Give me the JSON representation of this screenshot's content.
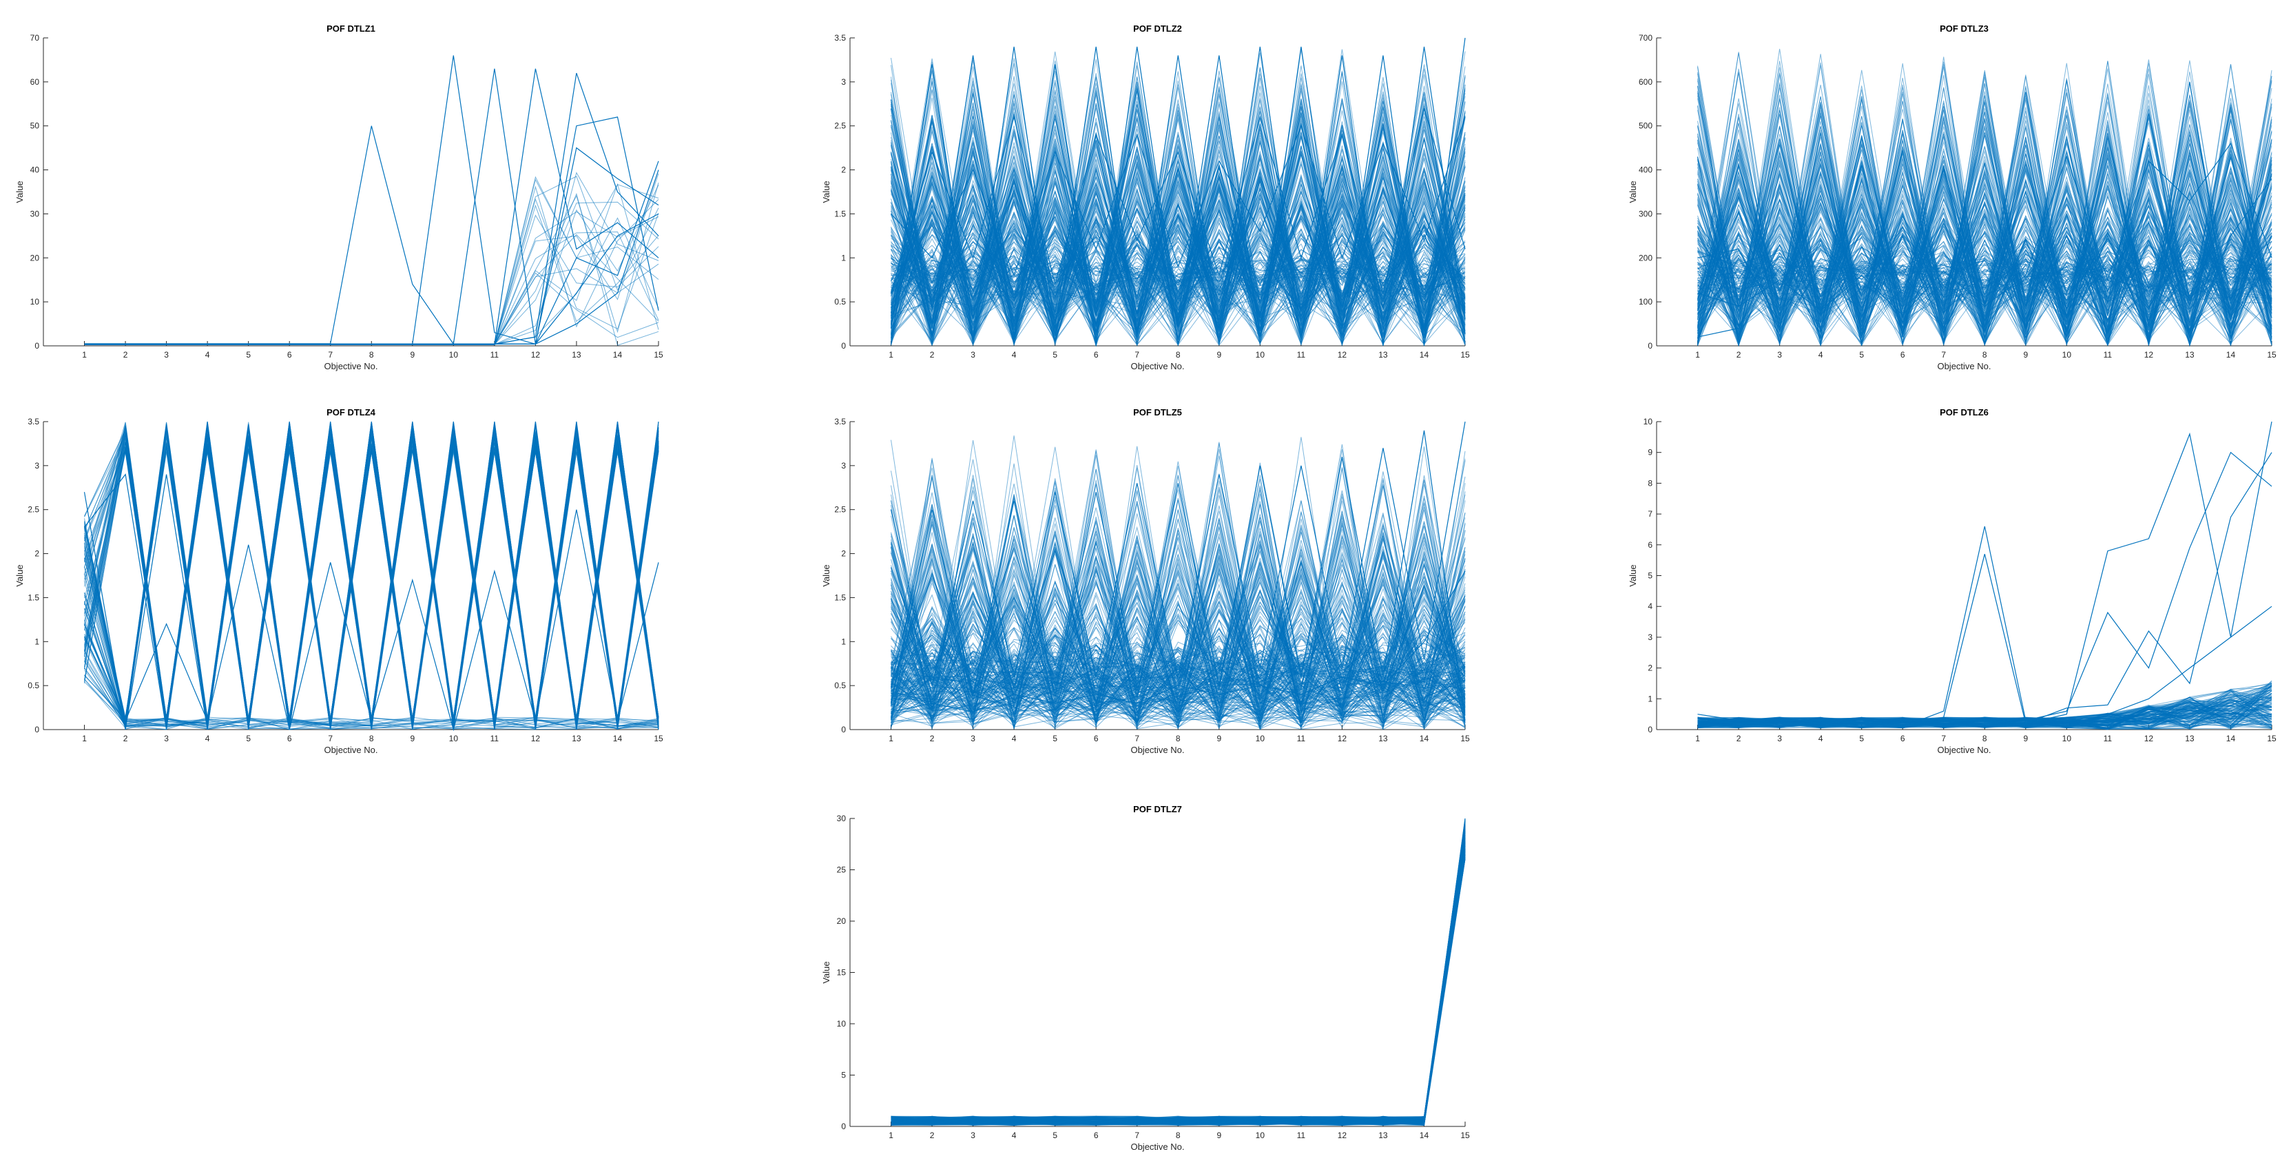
{
  "line_color": "#0072BD",
  "chart_data": [
    {
      "type": "line",
      "title": "POF DTLZ1",
      "xlabel": "Objective No.",
      "ylabel": "Value",
      "x": [
        1,
        2,
        3,
        4,
        5,
        6,
        7,
        8,
        9,
        10,
        11,
        12,
        13,
        14,
        15
      ],
      "xlim": [
        0,
        15
      ],
      "ylim": [
        0,
        70
      ],
      "yticks": [
        0,
        10,
        20,
        30,
        40,
        50,
        60,
        70
      ],
      "pattern": "sparse_late",
      "grid": false,
      "legend": "none",
      "series": [
        {
          "values": [
            0.5,
            0.5,
            0.5,
            0.5,
            0.5,
            0.5,
            0.5,
            50,
            14,
            0.4,
            0.4,
            0.4,
            5,
            12,
            40
          ]
        },
        {
          "values": [
            0.4,
            0.4,
            0.4,
            0.4,
            0.4,
            0.4,
            0.4,
            0.4,
            0.4,
            66,
            3,
            0.4,
            12,
            25,
            30
          ]
        },
        {
          "values": [
            0.4,
            0.4,
            0.4,
            0.4,
            0.4,
            0.4,
            0.4,
            0.4,
            0.4,
            0.4,
            63,
            0.4,
            20,
            16,
            42
          ]
        },
        {
          "values": [
            0.4,
            0.4,
            0.4,
            0.4,
            0.4,
            0.4,
            0.4,
            0.4,
            0.4,
            0.4,
            0.4,
            63,
            22,
            28,
            20
          ]
        },
        {
          "values": [
            0.4,
            0.4,
            0.4,
            0.4,
            0.4,
            0.4,
            0.4,
            0.4,
            0.4,
            0.4,
            0.4,
            2,
            62,
            35,
            25
          ]
        },
        {
          "values": [
            0.4,
            0.4,
            0.4,
            0.4,
            0.4,
            0.4,
            0.4,
            0.4,
            0.4,
            0.4,
            0.4,
            0.4,
            50,
            52,
            8
          ]
        },
        {
          "values": [
            0.4,
            0.4,
            0.4,
            0.4,
            0.4,
            0.4,
            0.4,
            0.4,
            0.4,
            0.4,
            0.4,
            0.4,
            45,
            38,
            32
          ]
        }
      ]
    },
    {
      "type": "line",
      "title": "POF DTLZ2",
      "xlabel": "Objective No.",
      "ylabel": "Value",
      "x": [
        1,
        2,
        3,
        4,
        5,
        6,
        7,
        8,
        9,
        10,
        11,
        12,
        13,
        14,
        15
      ],
      "xlim": [
        0,
        15
      ],
      "ylim": [
        0,
        3.5
      ],
      "yticks": [
        0,
        0.5,
        1,
        1.5,
        2,
        2.5,
        3,
        3.5
      ],
      "pattern": "dense_zigzag",
      "grid": false,
      "legend": "none",
      "series": [
        {
          "values": [
            2.8,
            0.2,
            3.3,
            0.1,
            3.2,
            0.0,
            3.4,
            0.3,
            3.3,
            0.1,
            3.4,
            0.2,
            3.3,
            0.0,
            3.5
          ]
        },
        {
          "values": [
            0.2,
            3.2,
            0.1,
            3.4,
            0.2,
            3.4,
            0.1,
            3.3,
            0.2,
            3.4,
            0.1,
            3.3,
            0.0,
            3.4,
            0.3
          ]
        },
        {
          "values": [
            1.5,
            1.0,
            2.0,
            0.8,
            2.2,
            1.1,
            2.4,
            0.9,
            2.1,
            1.3,
            2.5,
            1.0,
            2.3,
            1.2,
            2.6
          ]
        },
        {
          "values": [
            0.6,
            2.2,
            1.0,
            2.6,
            0.7,
            2.4,
            1.2,
            2.2,
            0.8,
            2.6,
            1.0,
            2.4,
            0.6,
            2.7,
            1.1
          ]
        }
      ]
    },
    {
      "type": "line",
      "title": "POF DTLZ3",
      "xlabel": "Objective No.",
      "ylabel": "Value",
      "x": [
        1,
        2,
        3,
        4,
        5,
        6,
        7,
        8,
        9,
        10,
        11,
        12,
        13,
        14,
        15
      ],
      "xlim": [
        0,
        15
      ],
      "ylim": [
        0,
        700
      ],
      "yticks": [
        0,
        100,
        200,
        300,
        400,
        500,
        600,
        700
      ],
      "pattern": "dense_zigzag",
      "grid": false,
      "legend": "none",
      "series": [
        {
          "values": [
            200,
            220,
            50,
            240,
            20,
            250,
            30,
            240,
            40,
            250,
            30,
            240,
            20,
            250,
            380
          ]
        },
        {
          "values": [
            20,
            40,
            230,
            20,
            410,
            20,
            410,
            20,
            240,
            20,
            250,
            20,
            600,
            20,
            250
          ]
        },
        {
          "values": [
            120,
            90,
            150,
            80,
            160,
            70,
            170,
            90,
            160,
            430,
            150,
            420,
            330,
            460,
            200
          ]
        }
      ]
    },
    {
      "type": "line",
      "title": "POF DTLZ4",
      "xlabel": "Objective No.",
      "ylabel": "Value",
      "x": [
        1,
        2,
        3,
        4,
        5,
        6,
        7,
        8,
        9,
        10,
        11,
        12,
        13,
        14,
        15
      ],
      "xlim": [
        0,
        15
      ],
      "ylim": [
        0,
        3.5
      ],
      "yticks": [
        0,
        0.5,
        1,
        1.5,
        2,
        2.5,
        3,
        3.5
      ],
      "pattern": "banded_zigzag",
      "grid": false,
      "legend": "none",
      "series": [
        {
          "values": [
            2.7,
            0.0,
            2.9,
            0.0,
            3.3,
            0.0,
            3.5,
            0.0,
            3.5,
            0.0,
            3.5,
            0.0,
            3.5,
            0.0,
            3.5
          ]
        },
        {
          "values": [
            2.3,
            2.9,
            0.0,
            3.5,
            0.0,
            3.5,
            0.0,
            3.5,
            0.0,
            3.5,
            0.0,
            3.5,
            0.0,
            3.5,
            0.0
          ]
        },
        {
          "values": [
            1.2,
            0.1,
            1.2,
            0.1,
            2.1,
            0.0,
            1.9,
            0.1,
            1.7,
            0.0,
            1.8,
            0.1,
            2.5,
            0.1,
            1.9
          ]
        }
      ]
    },
    {
      "type": "line",
      "title": "POF DTLZ5",
      "xlabel": "Objective No.",
      "ylabel": "Value",
      "x": [
        1,
        2,
        3,
        4,
        5,
        6,
        7,
        8,
        9,
        10,
        11,
        12,
        13,
        14,
        15
      ],
      "xlim": [
        0,
        15
      ],
      "ylim": [
        0,
        3.5
      ],
      "yticks": [
        0,
        0.5,
        1,
        1.5,
        2,
        2.5,
        3,
        3.5
      ],
      "pattern": "dense_zigzag_base",
      "grid": false,
      "legend": "none",
      "series": [
        {
          "values": [
            2.5,
            0.5,
            2.6,
            0.6,
            2.7,
            0.6,
            2.8,
            0.6,
            2.9,
            0.7,
            3.0,
            0.7,
            3.2,
            0.8,
            3.5
          ]
        },
        {
          "values": [
            0.3,
            2.5,
            0.4,
            2.6,
            0.4,
            2.7,
            0.5,
            2.8,
            0.5,
            3.0,
            0.6,
            3.1,
            0.6,
            3.4,
            0.1
          ]
        },
        {
          "values": [
            0.2,
            0.3,
            0.2,
            0.4,
            0.3,
            0.4,
            0.3,
            0.5,
            0.4,
            0.5,
            0.4,
            0.6,
            0.5,
            1.0,
            1.8
          ]
        }
      ]
    },
    {
      "type": "line",
      "title": "POF DTLZ6",
      "xlabel": "Objective No.",
      "ylabel": "Value",
      "x": [
        1,
        2,
        3,
        4,
        5,
        6,
        7,
        8,
        9,
        10,
        11,
        12,
        13,
        14,
        15
      ],
      "xlim": [
        0,
        15
      ],
      "ylim": [
        0,
        10
      ],
      "yticks": [
        0,
        1,
        2,
        3,
        4,
        5,
        6,
        7,
        8,
        9,
        10
      ],
      "pattern": "low_late",
      "grid": false,
      "legend": "none",
      "series": [
        {
          "values": [
            0.5,
            0.3,
            0.4,
            0.2,
            0.3,
            0.1,
            0.6,
            6.6,
            0.3,
            0.4,
            0.5,
            1.0,
            2.0,
            3.0,
            4.0
          ]
        },
        {
          "values": [
            0.4,
            0.2,
            0.3,
            0.3,
            0.2,
            0.1,
            0.4,
            5.7,
            0.2,
            0.5,
            5.8,
            6.2,
            9.6,
            3.0,
            10.0
          ]
        },
        {
          "values": [
            0.3,
            0.2,
            0.2,
            0.2,
            0.1,
            0.1,
            0.2,
            0.4,
            0.3,
            0.6,
            3.8,
            2.0,
            5.9,
            9.0,
            7.9
          ]
        },
        {
          "values": [
            0.2,
            0.1,
            0.2,
            0.1,
            0.2,
            0.1,
            0.3,
            0.3,
            0.2,
            0.7,
            0.8,
            3.2,
            1.5,
            6.9,
            9.0
          ]
        }
      ]
    },
    {
      "type": "line",
      "title": "POF DTLZ7",
      "xlabel": "Objective No.",
      "ylabel": "Value",
      "x": [
        1,
        2,
        3,
        4,
        5,
        6,
        7,
        8,
        9,
        10,
        11,
        12,
        13,
        14,
        15
      ],
      "xlim": [
        0,
        15
      ],
      "ylim": [
        0,
        30
      ],
      "yticks": [
        0,
        5,
        10,
        15,
        20,
        25,
        30
      ],
      "pattern": "flat_then_spike",
      "grid": false,
      "legend": "none",
      "series": [
        {
          "values": [
            0.9,
            0.2,
            0.9,
            0.2,
            0.8,
            0.3,
            0.9,
            0.2,
            0.8,
            0.3,
            0.9,
            0.2,
            0.8,
            0.3,
            30
          ]
        },
        {
          "values": [
            0.2,
            0.9,
            0.2,
            0.8,
            0.3,
            0.9,
            0.2,
            0.8,
            0.3,
            0.9,
            0.2,
            0.9,
            0.2,
            0.9,
            27
          ]
        }
      ]
    }
  ]
}
